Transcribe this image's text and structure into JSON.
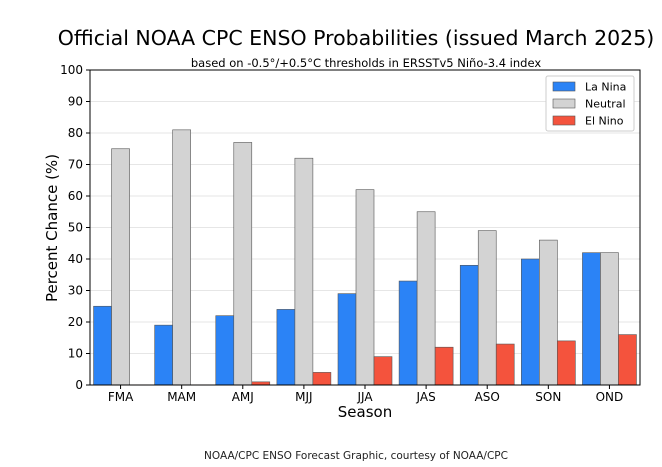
{
  "chart_data": {
    "type": "bar",
    "title": "Official NOAA CPC ENSO Probabilities (issued March 2025)",
    "subtitle": "based on -0.5°/+0.5°C thresholds in ERSSTv5 Niño-3.4 index",
    "xlabel": "Season",
    "ylabel": "Percent Chance (%)",
    "ylim": [
      0,
      100
    ],
    "yticks": [
      0,
      10,
      20,
      30,
      40,
      50,
      60,
      70,
      80,
      90,
      100
    ],
    "categories": [
      "FMA",
      "MAM",
      "AMJ",
      "MJJ",
      "JJA",
      "JAS",
      "ASO",
      "SON",
      "OND"
    ],
    "series": [
      {
        "name": "La Nina",
        "color": "#2b83f6",
        "values": [
          25,
          19,
          22,
          24,
          29,
          33,
          38,
          40,
          42
        ]
      },
      {
        "name": "Neutral",
        "color": "#d3d3d3",
        "values": [
          75,
          81,
          77,
          72,
          62,
          55,
          49,
          46,
          42
        ]
      },
      {
        "name": "El Nino",
        "color": "#f4533d",
        "values": [
          0,
          0,
          1,
          4,
          9,
          12,
          13,
          14,
          16
        ]
      }
    ],
    "grid": true,
    "legend": "top-right"
  },
  "footer": {
    "credit": "NOAA/CPC ENSO Forecast Graphic, courtesy of NOAA/CPC"
  }
}
